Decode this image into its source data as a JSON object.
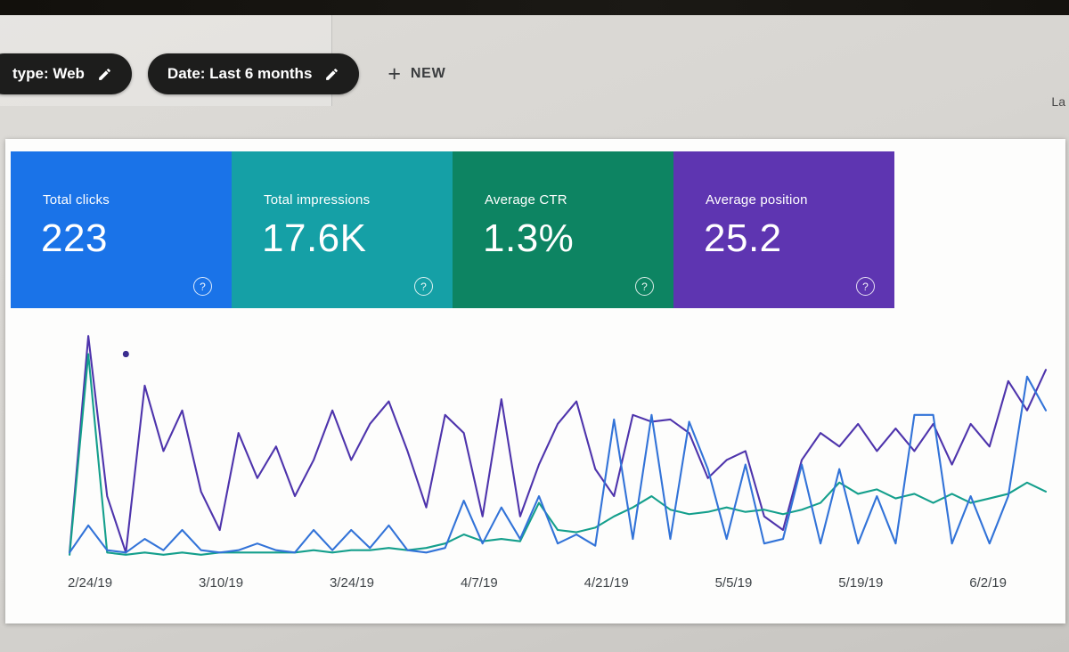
{
  "topbar": {
    "partial_right_text": "La"
  },
  "filters": {
    "chips": [
      {
        "label": "type: Web",
        "icon": "pencil-icon"
      },
      {
        "label": "Date: Last 6 months",
        "icon": "pencil-icon"
      }
    ],
    "new_label": "NEW",
    "plus_icon": "+"
  },
  "metrics": {
    "help_icon": "?",
    "cards": [
      {
        "label": "Total clicks",
        "value": "223",
        "color": "#1a73e8"
      },
      {
        "label": "Total impressions",
        "value": "17.6K",
        "color": "#15a0a6"
      },
      {
        "label": "Average CTR",
        "value": "1.3%",
        "color": "#0d8462"
      },
      {
        "label": "Average position",
        "value": "25.2",
        "color": "#5e35b1"
      }
    ]
  },
  "chart_data": {
    "type": "line",
    "x_tick_labels": [
      "2/24/19",
      "3/10/19",
      "3/24/19",
      "4/7/19",
      "4/21/19",
      "5/5/19",
      "5/19/19",
      "6/2/19"
    ],
    "y_axis_shown": false,
    "values_unit": "relative height 0-100 (no y-axis labels visible in screenshot)",
    "grid": "off",
    "legend_position": "none-visible",
    "series": [
      {
        "name": "Total impressions",
        "color": "#4e34ac",
        "values": [
          2,
          98,
          27,
          2,
          76,
          47,
          65,
          29,
          12,
          55,
          35,
          49,
          27,
          43,
          65,
          43,
          59,
          69,
          47,
          22,
          63,
          55,
          18,
          70,
          18,
          41,
          59,
          69,
          39,
          27,
          63,
          60,
          61,
          55,
          35,
          43,
          47,
          18,
          12,
          43,
          55,
          49,
          59,
          47,
          57,
          47,
          59,
          41,
          59,
          49,
          78,
          65,
          83
        ]
      },
      {
        "name": "Average CTR",
        "color": "#149f8c",
        "values": [
          1,
          90,
          2,
          1,
          2,
          1,
          2,
          1,
          2,
          2,
          2,
          2,
          2,
          3,
          2,
          3,
          3,
          4,
          3,
          4,
          6,
          10,
          7,
          8,
          7,
          24,
          12,
          11,
          13,
          18,
          22,
          27,
          21,
          19,
          20,
          22,
          20,
          21,
          19,
          21,
          24,
          33,
          28,
          30,
          26,
          28,
          24,
          28,
          24,
          26,
          28,
          33,
          29
        ]
      },
      {
        "name": "Total clicks",
        "color": "#3273d8",
        "values": [
          2,
          14,
          3,
          2,
          8,
          3,
          12,
          3,
          2,
          3,
          6,
          3,
          2,
          12,
          3,
          12,
          4,
          14,
          3,
          2,
          4,
          25,
          6,
          22,
          8,
          27,
          6,
          10,
          5,
          61,
          8,
          63,
          8,
          60,
          39,
          8,
          41,
          6,
          8,
          41,
          6,
          39,
          6,
          27,
          6,
          63,
          63,
          6,
          27,
          6,
          27,
          80,
          65
        ]
      }
    ],
    "outlier_dot": {
      "series": "Total impressions",
      "x_index": 3,
      "value": 90,
      "color": "#3b2d8f"
    }
  }
}
